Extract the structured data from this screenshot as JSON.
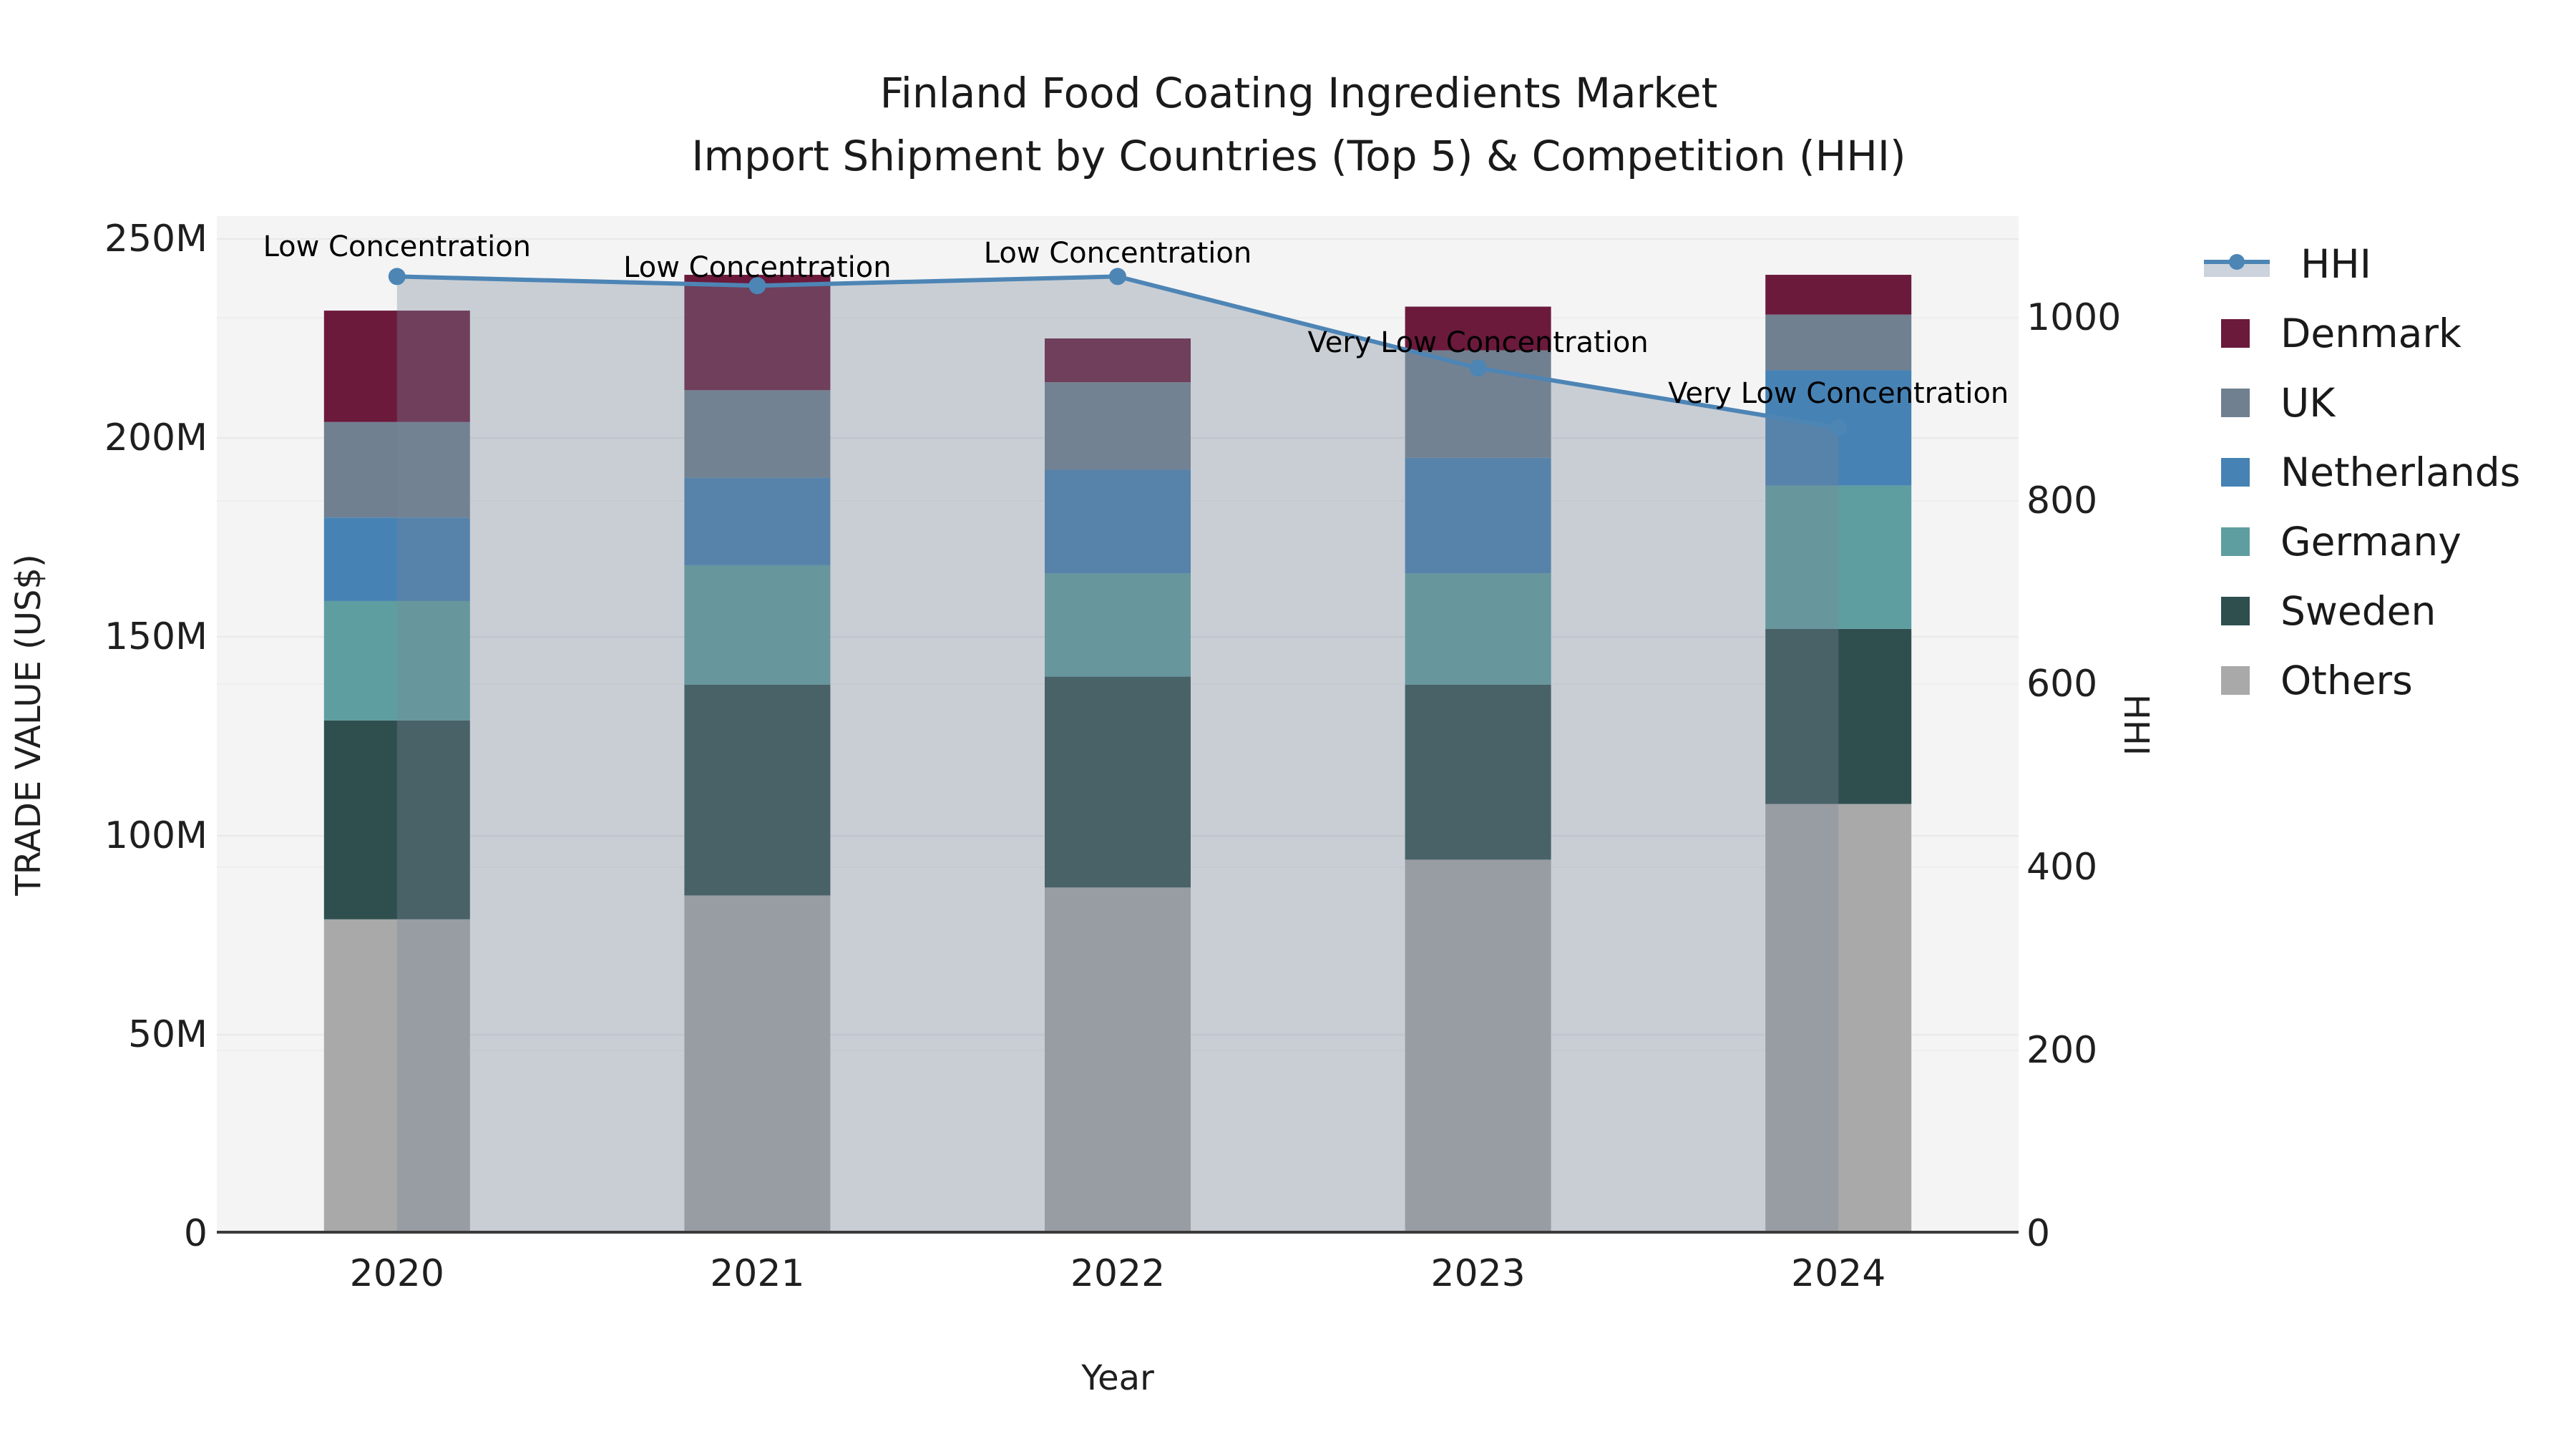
{
  "title": {
    "line1": "Finland Food Coating Ingredients Market",
    "line2": "Import Shipment by Countries (Top 5) & Competition (HHI)"
  },
  "axes": {
    "x_label": "Year",
    "y_left_label": "TRADE VALUE (US$)",
    "y_right_label": "HHI",
    "y_left_ticks": [
      {
        "label": "0",
        "value": 0
      },
      {
        "label": "50M",
        "value": 50
      },
      {
        "label": "100M",
        "value": 100
      },
      {
        "label": "150M",
        "value": 150
      },
      {
        "label": "200M",
        "value": 200
      },
      {
        "label": "250M",
        "value": 250
      }
    ],
    "y_right_ticks": [
      {
        "label": "0",
        "value": 0
      },
      {
        "label": "200",
        "value": 200
      },
      {
        "label": "400",
        "value": 400
      },
      {
        "label": "600",
        "value": 600
      },
      {
        "label": "800",
        "value": 800
      },
      {
        "label": "1000",
        "value": 1000
      }
    ]
  },
  "legend": [
    {
      "label": "HHI",
      "type": "line",
      "line_color": "#4d85b5",
      "band_color": "#ccd3dc"
    },
    {
      "label": "Denmark",
      "type": "patch",
      "color": "#6b1a3c"
    },
    {
      "label": "UK",
      "type": "patch",
      "color": "#708090"
    },
    {
      "label": "Netherlands",
      "type": "patch",
      "color": "#4682b4"
    },
    {
      "label": "Germany",
      "type": "patch",
      "color": "#5f9ea0"
    },
    {
      "label": "Sweden",
      "type": "patch",
      "color": "#2f4f4f"
    },
    {
      "label": "Others",
      "type": "patch",
      "color": "#a9a9a9"
    }
  ],
  "annotations": [
    {
      "x": "2020",
      "text": "Low Concentration"
    },
    {
      "x": "2021",
      "text": "Low Concentration"
    },
    {
      "x": "2022",
      "text": "Low Concentration"
    },
    {
      "x": "2023",
      "text": "Very Low Concentration"
    },
    {
      "x": "2024",
      "text": "Very Low Concentration"
    }
  ],
  "chart_data": {
    "type": "bar",
    "subtype": "stacked-bars-with-line-overlay",
    "title": "Finland Food Coating Ingredients Market — Import Shipment by Countries (Top 5) & Competition (HHI)",
    "xlabel": "Year",
    "ylabel_left": "TRADE VALUE (US$)",
    "ylabel_right": "HHI",
    "x": [
      "2020",
      "2021",
      "2022",
      "2023",
      "2024"
    ],
    "bar_value_unit": "million US$",
    "ylim_left_M": [
      0,
      255
    ],
    "ylim_right_HHI": [
      0,
      1110
    ],
    "grid": true,
    "legend_position": "right",
    "series": [
      {
        "name": "Others",
        "color": "#a9a9a9",
        "values": [
          79,
          85,
          87,
          94,
          108
        ]
      },
      {
        "name": "Sweden",
        "color": "#2f4f4f",
        "values": [
          50,
          53,
          53,
          44,
          44
        ]
      },
      {
        "name": "Germany",
        "color": "#5f9ea0",
        "values": [
          30,
          30,
          26,
          28,
          36
        ]
      },
      {
        "name": "Netherlands",
        "color": "#4682b4",
        "values": [
          21,
          22,
          26,
          29,
          29
        ]
      },
      {
        "name": "UK",
        "color": "#708090",
        "values": [
          24,
          22,
          22,
          27,
          14
        ]
      },
      {
        "name": "Denmark",
        "color": "#6b1a3c",
        "values": [
          28,
          29,
          11,
          11,
          10
        ]
      }
    ],
    "stack_totals_M": [
      232,
      241,
      225,
      233,
      241
    ],
    "line": {
      "name": "HHI",
      "color": "#4d85b5",
      "area_color": "rgba(119,136,153,0.35)",
      "values": [
        1045,
        1035,
        1045,
        945,
        880
      ]
    }
  }
}
